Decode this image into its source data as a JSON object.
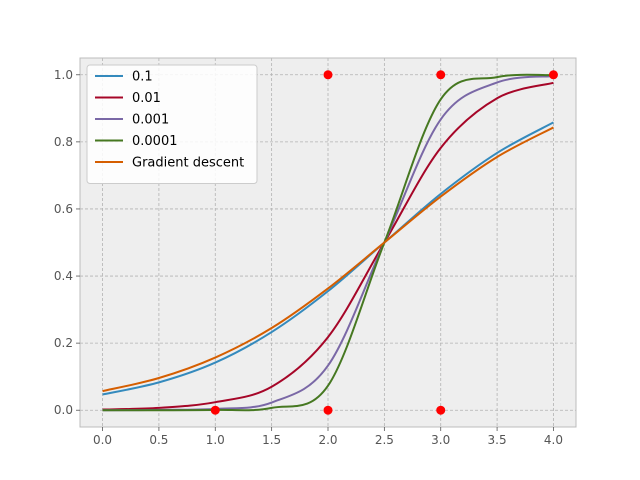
{
  "chart_data": {
    "type": "line",
    "xlim": [
      -0.2,
      4.2
    ],
    "ylim": [
      -0.05,
      1.05
    ],
    "x_ticks": [
      "0.0",
      "0.5",
      "1.0",
      "1.5",
      "2.0",
      "2.5",
      "3.0",
      "3.5",
      "4.0"
    ],
    "y_ticks": [
      "0.0",
      "0.2",
      "0.4",
      "0.6",
      "0.8",
      "1.0"
    ],
    "grid": true,
    "legend_position": "top-left",
    "series": [
      {
        "name": "0.1",
        "color": "#348ABD",
        "x": [
          0.0,
          0.5,
          1.0,
          1.5,
          2.0,
          2.5,
          3.0,
          3.5,
          4.0
        ],
        "y": [
          0.047,
          0.083,
          0.142,
          0.233,
          0.355,
          0.5,
          0.645,
          0.767,
          0.858
        ]
      },
      {
        "name": "0.01",
        "color": "#A60628",
        "x": [
          0.0,
          0.5,
          1.0,
          1.5,
          2.0,
          2.5,
          3.0,
          3.5,
          4.0
        ],
        "y": [
          0.002,
          0.007,
          0.024,
          0.07,
          0.218,
          0.5,
          0.782,
          0.93,
          0.976
        ]
      },
      {
        "name": "0.001",
        "color": "#7A68A6",
        "x": [
          0.0,
          0.5,
          1.0,
          1.5,
          2.0,
          2.5,
          3.0,
          3.5,
          4.0
        ],
        "y": [
          0.0,
          0.001,
          0.004,
          0.023,
          0.133,
          0.5,
          0.867,
          0.977,
          0.996
        ]
      },
      {
        "name": "0.0001",
        "color": "#467821",
        "x": [
          0.0,
          0.5,
          1.0,
          1.5,
          2.0,
          2.5,
          3.0,
          3.5,
          4.0
        ],
        "y": [
          0.0,
          0.0,
          0.001,
          0.007,
          0.073,
          0.5,
          0.927,
          0.993,
          0.999
        ]
      },
      {
        "name": "Gradient descent",
        "color": "#D55E00",
        "x": [
          0.0,
          0.5,
          1.0,
          1.5,
          2.0,
          2.5,
          3.0,
          3.5,
          4.0
        ],
        "y": [
          0.057,
          0.096,
          0.157,
          0.245,
          0.363,
          0.5,
          0.637,
          0.755,
          0.843
        ]
      }
    ],
    "scatter": {
      "color": "#FF0000",
      "x": [
        1.0,
        2.0,
        2.0,
        3.0,
        3.0,
        4.0
      ],
      "y": [
        0.0,
        0.0,
        1.0,
        0.0,
        1.0,
        1.0
      ]
    }
  }
}
